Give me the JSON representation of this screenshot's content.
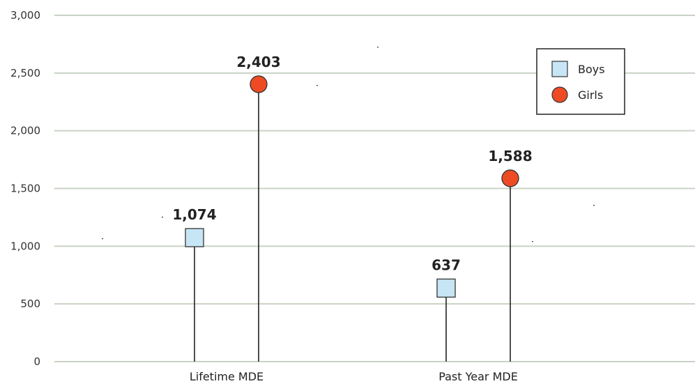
{
  "chart_data": {
    "type": "lollipop",
    "categories": [
      "Lifetime MDE",
      "Past Year MDE"
    ],
    "series": [
      {
        "name": "Boys",
        "values": [
          1074,
          637
        ],
        "labels": [
          "1,074",
          "637"
        ],
        "marker": "square",
        "color": "#c7e6f5"
      },
      {
        "name": "Girls",
        "values": [
          2403,
          1588
        ],
        "labels": [
          "2,403",
          "1,588"
        ],
        "marker": "circle",
        "color": "#ee4b24"
      }
    ],
    "ylim": [
      0,
      3000
    ],
    "yticks": [
      0,
      500,
      1000,
      1500,
      2000,
      2500,
      3000
    ],
    "ytick_labels": [
      "0",
      "500",
      "1,000",
      "1,500",
      "2,000",
      "2,500",
      "3,000"
    ],
    "grid": true,
    "grid_color": "#c9d3c5",
    "legend_position": "top-right",
    "xlabel": "",
    "ylabel": "",
    "title": ""
  }
}
